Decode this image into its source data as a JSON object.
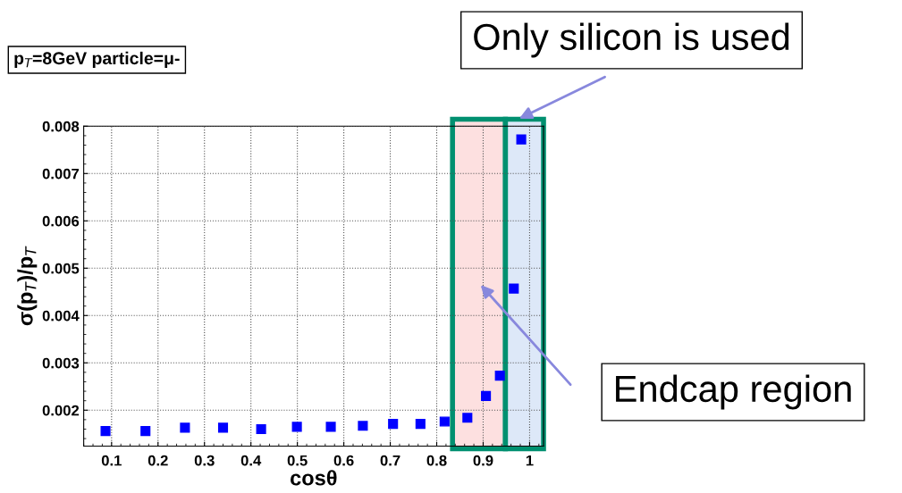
{
  "chart_data": {
    "type": "scatter",
    "title": "p$_{T}$=8GeV particle=μ-",
    "xlabel": "cosθ",
    "ylabel": "σ(p$_{T}$)/p$_{T}$",
    "x": [
      0.087,
      0.173,
      0.258,
      0.34,
      0.422,
      0.499,
      0.572,
      0.641,
      0.706,
      0.765,
      0.817,
      0.866,
      0.906,
      0.936,
      0.966,
      0.982
    ],
    "series": [
      {
        "color": "#0000ff",
        "values": [
          0.00156,
          0.00156,
          0.00163,
          0.00163,
          0.0016,
          0.00165,
          0.00165,
          0.00167,
          0.00171,
          0.00171,
          0.00176,
          0.00184,
          0.0023,
          0.00273,
          0.00457,
          0.00772
        ]
      }
    ],
    "xlim": [
      0.04,
      1.03
    ],
    "ylim": [
      0.00124,
      0.008
    ],
    "xticks": [
      0.1,
      0.2,
      0.3,
      0.4,
      0.5,
      0.6,
      0.7,
      0.8,
      0.9,
      {
        "value": 1,
        "label": "1"
      }
    ],
    "yticks": [
      0.002,
      0.003,
      0.004,
      0.005,
      0.006,
      0.007,
      0.008
    ],
    "bands": [
      {
        "axis": "x",
        "from": 0.834,
        "to": 0.948,
        "label": "Endcap region",
        "color": "#fde0e0"
      },
      {
        "axis": "x",
        "from": 0.948,
        "to": 1.03,
        "label": "Only silicon is used",
        "color": "#dde8f8"
      }
    ],
    "grid": true,
    "marker": "square",
    "line_style": "none",
    "legend": false
  }
}
